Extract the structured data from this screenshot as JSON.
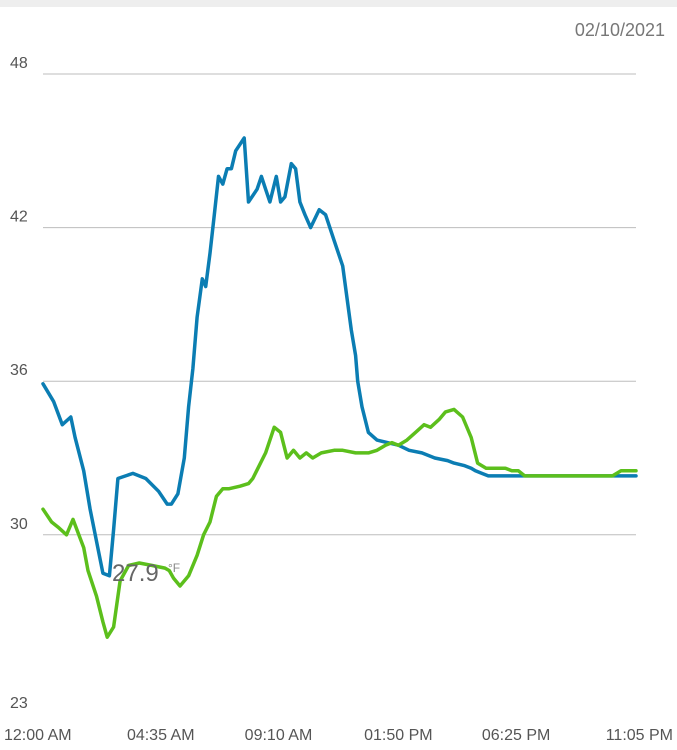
{
  "header": {
    "date": "02/10/2021"
  },
  "readout": {
    "value": "27.9",
    "unit": "°F"
  },
  "chart_data": {
    "type": "line",
    "title": "",
    "xlabel": "",
    "ylabel": "",
    "ylim": [
      23,
      48
    ],
    "yticks": [
      23,
      30,
      36,
      42,
      48
    ],
    "xlim": [
      0,
      1385
    ],
    "xtick_labels": [
      "12:00 AM",
      "04:35 AM",
      "09:10 AM",
      "01:50 PM",
      "06:25 PM",
      "11:05 PM"
    ],
    "xtick_values": [
      0,
      275,
      550,
      830,
      1105,
      1385
    ],
    "grid": true,
    "colors": {
      "series_0": "#0b7db3",
      "series_1": "#5cbf1c"
    },
    "series": [
      {
        "x": [
          0,
          25,
          45,
          65,
          75,
          95,
          110,
          140,
          155,
          165,
          175,
          210,
          240,
          270,
          290,
          300,
          315,
          330,
          340,
          350,
          360,
          372,
          380,
          390,
          400,
          410,
          420,
          430,
          440,
          450,
          470,
          480,
          500,
          510,
          520,
          530,
          545,
          555,
          565,
          580,
          590,
          600,
          612,
          625,
          645,
          660,
          680,
          700,
          720,
          730,
          735,
          745,
          760,
          780,
          830,
          855,
          885,
          915,
          945,
          960,
          985,
          1000,
          1010,
          1025,
          1040,
          1055,
          1070,
          1085,
          1100,
          1115,
          1125,
          1135,
          1385
        ],
        "y": [
          35.9,
          35.2,
          34.3,
          34.6,
          33.8,
          32.5,
          31.0,
          28.5,
          28.4,
          30.2,
          32.2,
          32.4,
          32.2,
          31.7,
          31.2,
          31.2,
          31.6,
          33.0,
          35.0,
          36.5,
          38.5,
          40.0,
          39.7,
          41.0,
          42.5,
          44.0,
          43.7,
          44.3,
          44.3,
          45.0,
          45.5,
          43.0,
          43.5,
          44.0,
          43.5,
          43.0,
          44.0,
          43.0,
          43.2,
          44.5,
          44.3,
          43.0,
          42.5,
          42.0,
          42.7,
          42.5,
          41.5,
          40.5,
          38.0,
          37.0,
          36.0,
          35.0,
          34.0,
          33.7,
          33.5,
          33.3,
          33.2,
          33.0,
          32.9,
          32.8,
          32.7,
          32.6,
          32.5,
          32.4,
          32.3,
          32.3,
          32.3,
          32.3,
          32.3,
          32.3,
          32.3,
          32.3,
          32.3
        ]
      },
      {
        "x": [
          0,
          20,
          35,
          55,
          70,
          95,
          105,
          125,
          140,
          150,
          165,
          180,
          200,
          225,
          255,
          285,
          295,
          305,
          320,
          340,
          360,
          375,
          390,
          405,
          420,
          435,
          460,
          480,
          490,
          505,
          520,
          540,
          555,
          570,
          585,
          600,
          615,
          630,
          650,
          680,
          700,
          730,
          760,
          780,
          800,
          815,
          830,
          850,
          870,
          890,
          905,
          925,
          940,
          960,
          980,
          1000,
          1015,
          1035,
          1050,
          1065,
          1080,
          1095,
          1110,
          1125,
          1160,
          1230,
          1330,
          1350,
          1385
        ],
        "y": [
          31.0,
          30.5,
          30.3,
          30.0,
          30.6,
          29.5,
          28.6,
          27.6,
          26.6,
          26.0,
          26.4,
          28.2,
          28.8,
          28.9,
          28.8,
          28.7,
          28.6,
          28.3,
          28.0,
          28.4,
          29.2,
          30.0,
          30.5,
          31.5,
          31.8,
          31.8,
          31.9,
          32.0,
          32.2,
          32.7,
          33.2,
          34.2,
          34.0,
          33.0,
          33.3,
          33.0,
          33.2,
          33.0,
          33.2,
          33.3,
          33.3,
          33.2,
          33.2,
          33.3,
          33.5,
          33.6,
          33.5,
          33.7,
          34.0,
          34.3,
          34.2,
          34.5,
          34.8,
          34.9,
          34.6,
          33.8,
          32.8,
          32.6,
          32.6,
          32.6,
          32.6,
          32.5,
          32.5,
          32.3,
          32.3,
          32.3,
          32.3,
          32.5,
          32.5
        ]
      }
    ]
  }
}
